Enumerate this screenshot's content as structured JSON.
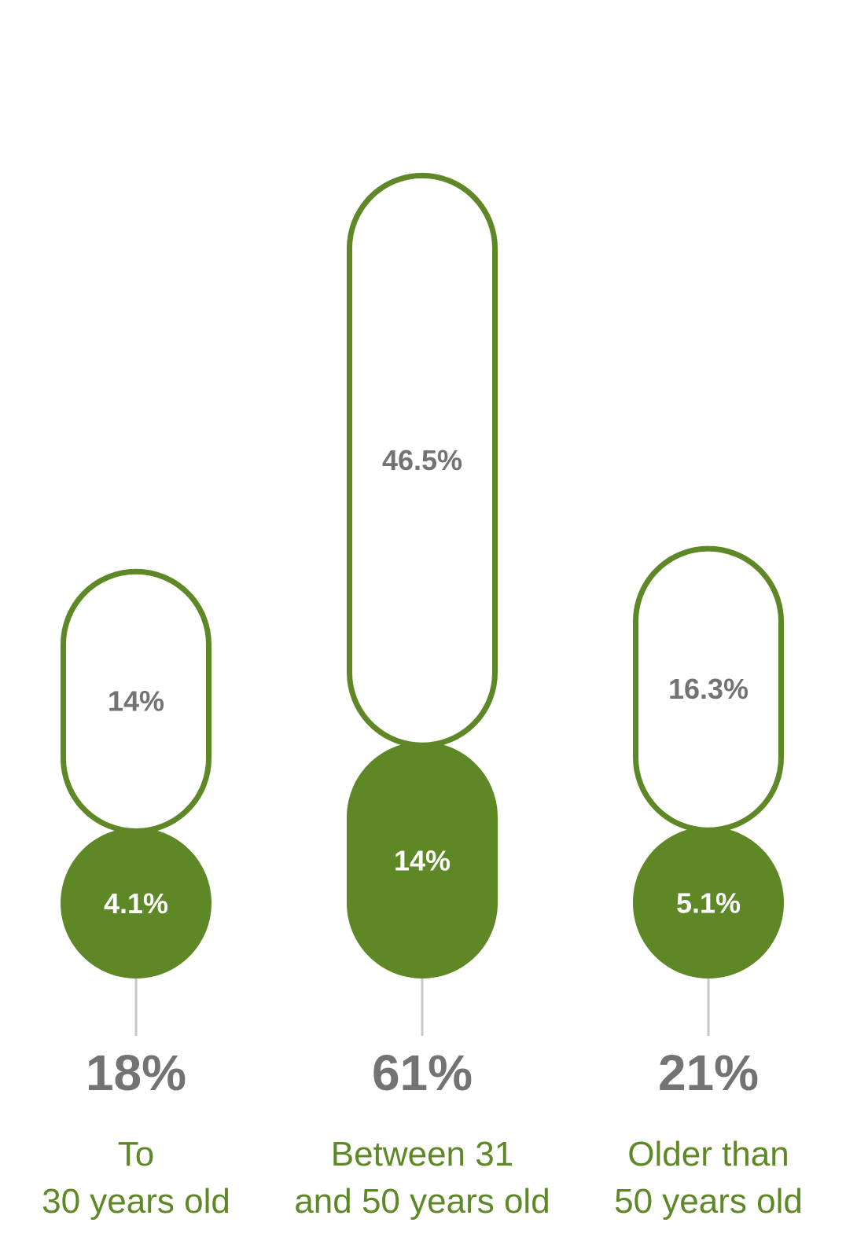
{
  "chart_data": {
    "type": "bar",
    "categories": [
      [
        "To",
        "30 years old"
      ],
      [
        "Between 31",
        "and 50 years old"
      ],
      [
        "Older than",
        "50 years old"
      ]
    ],
    "totals": [
      "18%",
      "61%",
      "21%"
    ],
    "series": [
      {
        "values": [
          4.1,
          14,
          5.1
        ],
        "labels": [
          "4.1%",
          "14%",
          "5.1%"
        ],
        "style": "filled"
      },
      {
        "values": [
          14,
          46.5,
          16.3
        ],
        "labels": [
          "14%",
          "46.5%",
          "16.3%"
        ],
        "style": "outline"
      }
    ]
  },
  "colors": {
    "green": "#5e8725",
    "grey_text": "#737373",
    "connector": "#c8c8c8",
    "white": "#ffffff"
  }
}
